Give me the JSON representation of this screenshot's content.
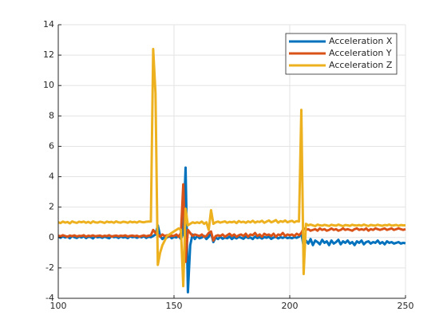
{
  "chart_data": {
    "type": "line",
    "x": [
      100,
      101,
      102,
      103,
      104,
      105,
      106,
      107,
      108,
      109,
      110,
      111,
      112,
      113,
      114,
      115,
      116,
      117,
      118,
      119,
      120,
      121,
      122,
      123,
      124,
      125,
      126,
      127,
      128,
      129,
      130,
      131,
      132,
      133,
      134,
      135,
      136,
      137,
      138,
      139,
      140,
      141,
      142,
      143,
      144,
      145,
      146,
      147,
      148,
      149,
      150,
      151,
      152,
      153,
      154,
      155,
      156,
      157,
      158,
      159,
      160,
      161,
      162,
      163,
      164,
      165,
      166,
      167,
      168,
      169,
      170,
      171,
      172,
      173,
      174,
      175,
      176,
      177,
      178,
      179,
      180,
      181,
      182,
      183,
      184,
      185,
      186,
      187,
      188,
      189,
      190,
      191,
      192,
      193,
      194,
      195,
      196,
      197,
      198,
      199,
      200,
      201,
      202,
      203,
      204,
      205,
      206,
      207,
      208,
      209,
      210,
      211,
      212,
      213,
      214,
      215,
      216,
      217,
      218,
      219,
      220,
      221,
      222,
      223,
      224,
      225,
      226,
      227,
      228,
      229,
      230,
      231,
      232,
      233,
      234,
      235,
      236,
      237,
      238,
      239,
      240,
      241,
      242,
      243,
      244,
      245,
      246,
      247,
      248,
      249,
      250
    ],
    "series": [
      {
        "name": "Acceleration X",
        "color": "#0072bd",
        "values": [
          0.05,
          -0.02,
          0.08,
          0.0,
          0.06,
          -0.05,
          0.1,
          0.02,
          -0.03,
          0.07,
          0.0,
          0.09,
          -0.04,
          0.05,
          0.03,
          -0.06,
          0.08,
          0.01,
          0.04,
          -0.02,
          0.06,
          0.0,
          -0.05,
          0.09,
          0.02,
          0.05,
          -0.03,
          0.07,
          0.0,
          0.04,
          -0.04,
          0.08,
          0.02,
          0.05,
          -0.02,
          0.06,
          0.01,
          0.09,
          -0.03,
          0.05,
          0.02,
          0.1,
          0.2,
          0.8,
          0.1,
          -0.1,
          0.05,
          0.0,
          0.1,
          -0.05,
          0.05,
          0.0,
          0.1,
          -0.1,
          0.3,
          4.6,
          -3.6,
          -0.5,
          0.2,
          -0.1,
          0.1,
          -0.05,
          0.0,
          0.1,
          -0.1,
          0.05,
          0.3,
          -0.3,
          0.0,
          -0.1,
          0.05,
          -0.08,
          0.0,
          -0.05,
          0.06,
          -0.1,
          0.02,
          -0.06,
          0.04,
          -0.02,
          -0.08,
          0.05,
          -0.03,
          0.0,
          -0.1,
          0.06,
          -0.04,
          0.02,
          -0.07,
          0.03,
          -0.02,
          0.05,
          -0.09,
          0.0,
          0.04,
          -0.06,
          0.02,
          -0.03,
          0.05,
          -0.04,
          0.0,
          -0.05,
          0.03,
          -0.02,
          0.05,
          0.3,
          -0.6,
          -0.2,
          -0.4,
          -0.1,
          -0.5,
          -0.2,
          -0.3,
          -0.45,
          -0.15,
          -0.35,
          -0.25,
          -0.5,
          -0.2,
          -0.4,
          -0.3,
          -0.15,
          -0.45,
          -0.25,
          -0.35,
          -0.2,
          -0.4,
          -0.3,
          -0.5,
          -0.25,
          -0.35,
          -0.2,
          -0.45,
          -0.3,
          -0.25,
          -0.4,
          -0.3,
          -0.35,
          -0.2,
          -0.4,
          -0.3,
          -0.45,
          -0.25,
          -0.35,
          -0.3,
          -0.4,
          -0.35,
          -0.3,
          -0.4,
          -0.35,
          -0.38
        ]
      },
      {
        "name": "Acceleration Y",
        "color": "#d95319",
        "values": [
          0.12,
          0.08,
          0.15,
          0.1,
          0.05,
          0.13,
          0.09,
          0.14,
          0.07,
          0.11,
          0.1,
          0.15,
          0.06,
          0.12,
          0.09,
          0.14,
          0.08,
          0.11,
          0.13,
          0.07,
          0.12,
          0.09,
          0.15,
          0.06,
          0.1,
          0.13,
          0.08,
          0.12,
          0.1,
          0.14,
          0.07,
          0.11,
          0.13,
          0.09,
          0.12,
          0.06,
          0.1,
          0.14,
          0.08,
          0.12,
          0.15,
          0.5,
          0.3,
          0.2,
          0.05,
          0.2,
          0.1,
          0.15,
          0.08,
          0.12,
          0.1,
          0.2,
          0.05,
          0.3,
          3.5,
          -1.6,
          0.5,
          0.3,
          0.1,
          0.2,
          0.15,
          0.1,
          0.2,
          0.05,
          0.1,
          0.3,
          0.4,
          -0.2,
          0.1,
          0.15,
          0.1,
          0.2,
          0.05,
          0.15,
          0.25,
          0.1,
          0.2,
          0.05,
          0.15,
          0.2,
          0.1,
          0.25,
          0.05,
          0.2,
          0.15,
          0.3,
          0.1,
          0.2,
          0.05,
          0.25,
          0.15,
          0.2,
          0.1,
          0.25,
          0.05,
          0.2,
          0.15,
          0.3,
          0.1,
          0.2,
          0.15,
          0.2,
          0.1,
          0.25,
          0.15,
          0.3,
          0.6,
          0.5,
          0.55,
          0.45,
          0.5,
          0.55,
          0.45,
          0.6,
          0.5,
          0.55,
          0.45,
          0.5,
          0.6,
          0.5,
          0.55,
          0.45,
          0.5,
          0.6,
          0.5,
          0.55,
          0.5,
          0.45,
          0.55,
          0.6,
          0.5,
          0.55,
          0.5,
          0.6,
          0.45,
          0.55,
          0.5,
          0.6,
          0.55,
          0.5,
          0.55,
          0.6,
          0.5,
          0.55,
          0.6,
          0.5,
          0.55,
          0.6,
          0.55,
          0.5,
          0.55
        ]
      },
      {
        "name": "Acceleration Z",
        "color": "#edb120",
        "values": [
          1.0,
          0.95,
          1.05,
          0.98,
          1.02,
          0.93,
          1.06,
          1.0,
          0.96,
          1.04,
          1.0,
          1.05,
          0.97,
          1.03,
          0.95,
          1.06,
          1.0,
          0.98,
          1.04,
          1.01,
          0.96,
          1.05,
          1.0,
          1.03,
          0.97,
          1.06,
          1.0,
          0.98,
          1.04,
          1.02,
          0.97,
          1.05,
          1.0,
          1.03,
          0.98,
          1.06,
          1.02,
          1.0,
          1.04,
          1.05,
          1.05,
          12.4,
          9.5,
          -1.8,
          -1.0,
          -0.5,
          -0.2,
          0.1,
          0.2,
          0.3,
          0.4,
          0.5,
          0.6,
          0.5,
          -3.2,
          1.9,
          0.8,
          0.9,
          1.0,
          0.95,
          1.0,
          0.95,
          1.05,
          0.9,
          1.0,
          0.5,
          1.8,
          0.9,
          1.0,
          1.05,
          0.98,
          1.02,
          1.06,
          0.97,
          1.03,
          1.0,
          1.05,
          0.95,
          1.08,
          1.0,
          1.04,
          0.97,
          1.06,
          1.0,
          1.1,
          0.98,
          1.05,
          1.02,
          1.1,
          0.97,
          1.05,
          1.12,
          1.0,
          1.06,
          1.15,
          0.98,
          1.08,
          1.03,
          1.12,
          1.0,
          1.06,
          1.1,
          1.0,
          1.08,
          1.05,
          8.4,
          -2.4,
          0.9,
          0.8,
          0.85,
          0.8,
          0.75,
          0.85,
          0.8,
          0.78,
          0.83,
          0.8,
          0.76,
          0.84,
          0.8,
          0.78,
          0.85,
          0.8,
          0.75,
          0.82,
          0.8,
          0.77,
          0.84,
          0.8,
          0.79,
          0.82,
          0.78,
          0.85,
          0.8,
          0.76,
          0.83,
          0.8,
          0.78,
          0.84,
          0.8,
          0.77,
          0.82,
          0.8,
          0.85,
          0.78,
          0.8,
          0.83,
          0.77,
          0.82,
          0.8,
          0.8
        ]
      }
    ],
    "xlim": [
      100,
      250
    ],
    "xticks": [
      100,
      150,
      200,
      250
    ],
    "ylim": [
      -4,
      14
    ],
    "yticks": [
      -4,
      -2,
      0,
      2,
      4,
      6,
      8,
      10,
      12,
      14
    ],
    "grid": true,
    "legend": "top-right"
  }
}
